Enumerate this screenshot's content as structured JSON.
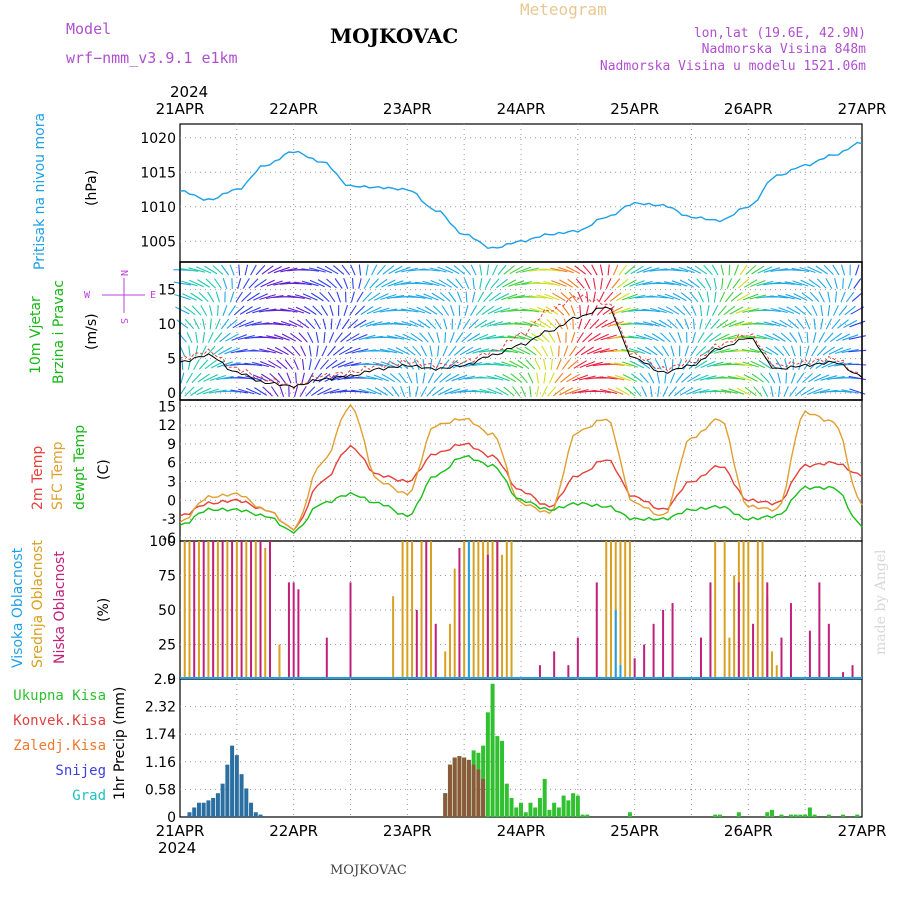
{
  "header": {
    "model_label": "Model",
    "model_name": "wrf−nmm_v3.9.1  e1km",
    "station": "MOJKOVAC",
    "meteogram": "Meteogram",
    "lonlat": "lon,lat (19.6E, 42.9N)",
    "alt1": "Nadmorska Visina 848m",
    "alt2": "Nadmorska Visina u modelu 1521.06m",
    "year_top": "2024",
    "year_bottom": "2024",
    "footer_station": "MOJKOVAC",
    "credit": "made by Angel"
  },
  "colors": {
    "pressure": "#1ea0e6",
    "temp2m": "#e8403a",
    "sfc": "#e0a030",
    "dewpt": "#18c018",
    "high": "#20a0e8",
    "mid": "#d8a020",
    "low": "#c0207a",
    "total": "#30c030",
    "convective": "#e04040",
    "freezing": "#f07830",
    "snow": "#4040e0",
    "hail": "#20c0c0"
  },
  "chart_data": [
    {
      "type": "line",
      "panel": "pressure",
      "ylabel_left": "Pritisak na nivou mora",
      "ylabel_unit": "(hPa)",
      "yticks": [
        "1005",
        "1010",
        "1015",
        "1020"
      ],
      "ylim": [
        1002,
        1022
      ],
      "x_hours": [
        0,
        6,
        12,
        18,
        24,
        30,
        36,
        42,
        48,
        54,
        60,
        66,
        72,
        78,
        84,
        90,
        96,
        102,
        108,
        114,
        120,
        126,
        132,
        138,
        144
      ],
      "values": [
        1012.3,
        1011.0,
        1012.5,
        1016.0,
        1018.0,
        1016.5,
        1013.0,
        1012.8,
        1012.5,
        1009.5,
        1006.0,
        1004.0,
        1005.0,
        1006.0,
        1006.5,
        1008.5,
        1010.5,
        1010.2,
        1008.5,
        1008.0,
        1010.0,
        1014.5,
        1016.0,
        1017.5,
        1019.3
      ],
      "xtick_labels": [
        "21APR",
        "22APR",
        "23APR",
        "24APR",
        "25APR",
        "26APR",
        "27APR"
      ]
    },
    {
      "type": "line",
      "panel": "wind",
      "ylabel_left": "10m Vjetar",
      "ylabel_left2": "Brzina i Pravac",
      "ylabel_unit": "(m/s)",
      "compass": [
        "N",
        "W",
        "E",
        "S"
      ],
      "yticks": [
        "0",
        "5",
        "10",
        "15"
      ],
      "ylim": [
        -1,
        19
      ],
      "x_hours": [
        0,
        6,
        12,
        18,
        24,
        30,
        36,
        42,
        48,
        54,
        60,
        66,
        72,
        78,
        84,
        90,
        96,
        102,
        108,
        114,
        120,
        126,
        132,
        138,
        144
      ],
      "speed": [
        4.5,
        5.5,
        3.0,
        1.5,
        1.0,
        2.0,
        2.5,
        3.5,
        4.0,
        3.5,
        4.0,
        5.5,
        7.0,
        9.0,
        11.0,
        12.5,
        5.0,
        3.0,
        4.0,
        6.5,
        8.0,
        3.5,
        4.0,
        4.5,
        2.5
      ],
      "gust": [
        5.0,
        6.0,
        3.5,
        2.0,
        1.0,
        2.5,
        3.0,
        4.0,
        4.5,
        4.0,
        4.5,
        6.0,
        8.5,
        12.0,
        14.0,
        13.0,
        5.5,
        3.5,
        4.5,
        7.0,
        8.5,
        4.0,
        4.5,
        5.0,
        2.5
      ]
    },
    {
      "type": "line",
      "panel": "temperature",
      "ylabel_left": "2m Temp",
      "ylabel_left2": "SFC Temp",
      "ylabel_left3": "dewpt Temp",
      "ylabel_unit": "(C)",
      "yticks": [
        "-6",
        "-3",
        "0",
        "3",
        "6",
        "9",
        "12",
        "15"
      ],
      "ylim": [
        -6.5,
        16
      ],
      "x_hours": [
        0,
        6,
        12,
        18,
        24,
        30,
        36,
        42,
        48,
        54,
        60,
        66,
        72,
        78,
        84,
        90,
        96,
        102,
        108,
        114,
        120,
        126,
        132,
        138,
        144
      ],
      "series": [
        {
          "name": "2m Temp",
          "values": [
            -2.5,
            -0.5,
            0,
            -1.5,
            -4.5,
            3.0,
            8.5,
            4.0,
            3.0,
            7.5,
            9.0,
            7.0,
            1.5,
            -1.0,
            4.0,
            6.5,
            0.5,
            -1.5,
            3.0,
            5.5,
            0,
            -0.5,
            5.5,
            6.0,
            4.0
          ]
        },
        {
          "name": "SFC Temp",
          "values": [
            -3.5,
            0.5,
            1.0,
            -1.5,
            -4.5,
            6.0,
            15.0,
            3.0,
            1.0,
            12.0,
            13.0,
            10.5,
            -0.5,
            -2.0,
            11.0,
            13.0,
            -0.5,
            -2.5,
            10.0,
            13.0,
            -1.0,
            -1.5,
            14.0,
            12.5,
            -0.5
          ]
        },
        {
          "name": "dewpt Temp",
          "values": [
            -4.0,
            -1.5,
            -1.5,
            -2.5,
            -5.0,
            -0.5,
            1.0,
            -0.5,
            -2.5,
            4.0,
            7.0,
            5.5,
            0,
            -1.5,
            -0.5,
            -1.0,
            -3.0,
            -3.0,
            -1.5,
            -1.0,
            -3.0,
            -2.5,
            2.0,
            2.0,
            -4.0
          ]
        }
      ]
    },
    {
      "type": "bar",
      "panel": "cloud",
      "ylabel_left": "Visoka Oblacnost",
      "ylabel_left2": "Srednja Oblacnost",
      "ylabel_left3": "Niska Oblacnost",
      "ylabel_unit": "(%)",
      "yticks": [
        "0",
        "25",
        "50",
        "75",
        "100"
      ],
      "ylim": [
        0,
        100
      ],
      "series": [
        {
          "name": "Srednja",
          "x_hours": [
            1,
            2,
            4,
            6,
            8,
            10,
            12,
            14,
            16,
            18,
            21,
            45,
            47,
            48,
            49,
            51,
            53,
            56,
            57,
            58,
            60,
            61,
            62,
            63,
            64,
            65,
            66,
            67,
            68,
            69,
            70,
            90,
            91,
            92,
            93,
            94,
            95,
            113,
            115,
            116,
            117,
            118,
            119,
            120,
            122,
            123,
            124,
            125,
            126
          ],
          "values": [
            100,
            100,
            100,
            100,
            100,
            100,
            100,
            100,
            100,
            95,
            25,
            60,
            100,
            100,
            100,
            100,
            100,
            20,
            40,
            80,
            100,
            100,
            100,
            100,
            100,
            100,
            100,
            100,
            90,
            100,
            100,
            100,
            100,
            100,
            100,
            100,
            100,
            100,
            100,
            30,
            75,
            100,
            100,
            100,
            100,
            100,
            60,
            20,
            10
          ]
        },
        {
          "name": "Niska",
          "x_hours": [
            3,
            5,
            7,
            9,
            11,
            13,
            15,
            17,
            19,
            23,
            24,
            25,
            31,
            36,
            50,
            52,
            54,
            59,
            65,
            67,
            76,
            79,
            82,
            84,
            88,
            96,
            98,
            100,
            102,
            104,
            110,
            112,
            118,
            121,
            124,
            127,
            129,
            133,
            135,
            137,
            140,
            142
          ],
          "values": [
            100,
            100,
            100,
            100,
            100,
            100,
            100,
            100,
            100,
            70,
            70,
            65,
            30,
            70,
            50,
            100,
            40,
            95,
            90,
            100,
            10,
            20,
            10,
            30,
            70,
            15,
            25,
            40,
            50,
            55,
            30,
            70,
            70,
            40,
            70,
            30,
            55,
            35,
            70,
            40,
            5,
            10
          ]
        },
        {
          "name": "Visoka",
          "x_hours": [
            61,
            92,
            93
          ],
          "values": [
            100,
            50,
            10
          ]
        }
      ]
    },
    {
      "type": "bar",
      "panel": "precip",
      "legend": [
        "Ukupna Kisa",
        "Konvek.Kisa",
        "Zaledj.Kisa",
        "Snijeg",
        "Grad"
      ],
      "ylabel_unit": "1hr Precip (mm)",
      "yticks": [
        "0",
        "0.58",
        "1.16",
        "1.74",
        "2.32",
        "2.9"
      ],
      "ylim": [
        0,
        2.9
      ],
      "snow_x_hours": [
        2,
        3,
        4,
        5,
        6,
        7,
        8,
        9,
        10,
        11,
        12,
        13,
        14,
        15,
        16,
        17
      ],
      "snow_values": [
        0.1,
        0.2,
        0.3,
        0.3,
        0.35,
        0.4,
        0.5,
        0.7,
        1.1,
        1.5,
        1.3,
        0.9,
        0.6,
        0.3,
        0.1,
        0.05
      ],
      "rain_x_hours": [
        56,
        57,
        58,
        59,
        60,
        61,
        62,
        63,
        64,
        65,
        66,
        67,
        68,
        69,
        70,
        71,
        72,
        73,
        74,
        75,
        76,
        77,
        78,
        79,
        80,
        81,
        82,
        83,
        84,
        85,
        86,
        95,
        113,
        114,
        118,
        124,
        125,
        127,
        129,
        130,
        131,
        132,
        133,
        134,
        137,
        140,
        143
      ],
      "rain_values": [
        0.5,
        1.1,
        1.25,
        1.28,
        1.25,
        1.2,
        1.4,
        1.35,
        1.5,
        2.2,
        2.8,
        1.7,
        1.6,
        0.7,
        0.4,
        0.2,
        0.3,
        0.1,
        0.3,
        0.2,
        0.4,
        0.8,
        0.15,
        0.3,
        0.2,
        0.45,
        0.35,
        0.5,
        0.45,
        0.05,
        0.05,
        0.1,
        0.05,
        0.05,
        0.1,
        0.1,
        0.15,
        0.05,
        0.05,
        0.05,
        0.05,
        0.05,
        0.2,
        0.05,
        0.05,
        0.05,
        0.05
      ],
      "conv_x_hours": [
        56,
        57,
        58,
        59,
        60,
        61,
        62,
        63,
        64
      ],
      "conv_values": [
        0.5,
        1.1,
        1.25,
        1.28,
        1.25,
        1.2,
        1.1,
        1.0,
        0.8
      ]
    }
  ]
}
